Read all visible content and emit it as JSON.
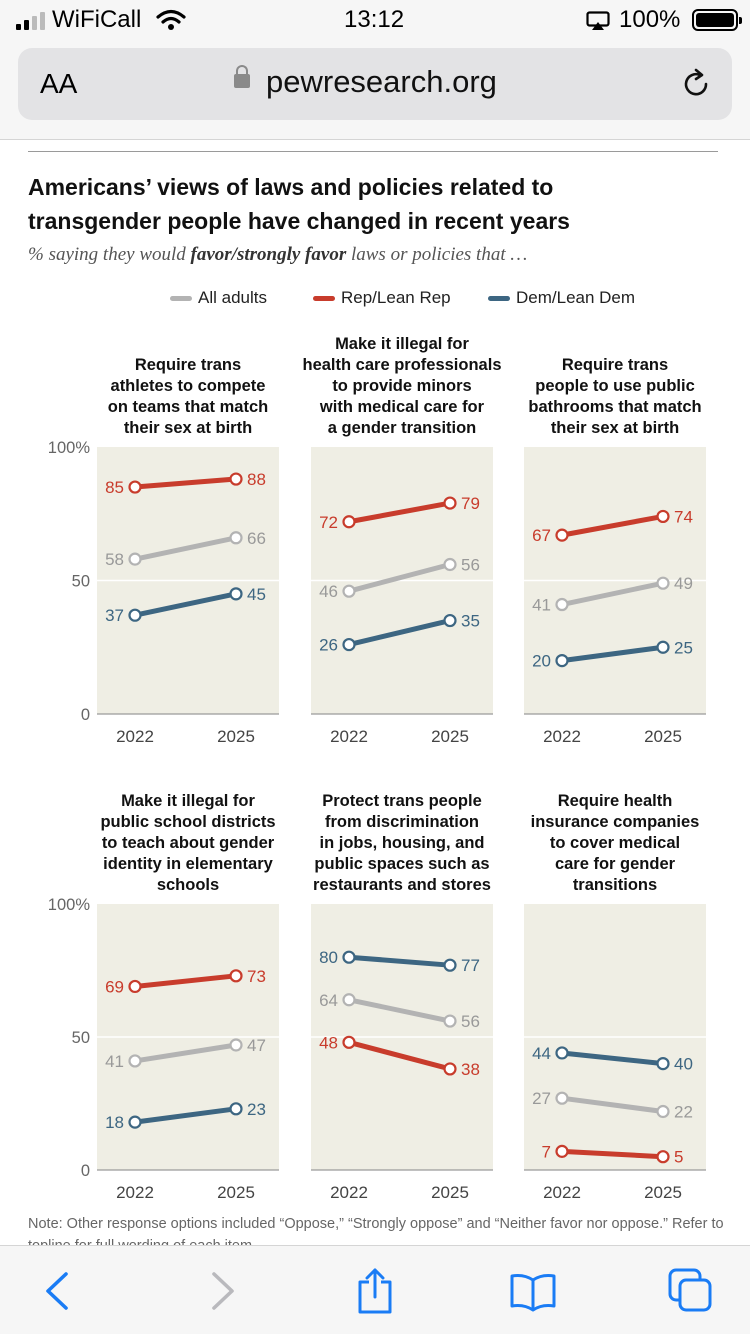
{
  "status_bar": {
    "carrier": "WiFiCall",
    "time": "13:12",
    "battery": "100%"
  },
  "browser": {
    "text_size_label": "AA",
    "url": "pewresearch.org"
  },
  "article": {
    "title_line1": "Americans’ views of laws and policies related to",
    "title_line2": "transgender people have changed in recent years",
    "subtitle_pre": "% saying they would ",
    "subtitle_emph": "favor/strongly favor",
    "subtitle_post": " laws or policies that …",
    "note": "Note: Other response options included “Oppose,” “Strongly oppose” and “Neither favor nor oppose.” Refer to topline for full wording of each item."
  },
  "colors": {
    "all": "#b3b3b3",
    "rep": "#c83c2c",
    "dem": "#3d6682",
    "panel_bg": "#efeee4"
  },
  "chart_data": {
    "type": "line",
    "x": [
      "2022",
      "2025"
    ],
    "ylim": [
      0,
      100
    ],
    "yticks": [
      "100%",
      "50",
      "0"
    ],
    "legend": [
      "All adults",
      "Rep/Lean Rep",
      "Dem/Lean Dem"
    ],
    "legend_position": "top",
    "panels": [
      {
        "title": [
          "Require trans",
          "athletes to compete",
          "on teams that match",
          "their sex at birth"
        ],
        "series": [
          {
            "name": "Rep/Lean Rep",
            "values": [
              85,
              88
            ]
          },
          {
            "name": "All adults",
            "values": [
              58,
              66
            ]
          },
          {
            "name": "Dem/Lean Dem",
            "values": [
              37,
              45
            ]
          }
        ]
      },
      {
        "title": [
          "Make it illegal for",
          "health care professionals",
          "to provide minors",
          "with medical care for",
          "a gender transition"
        ],
        "series": [
          {
            "name": "Rep/Lean Rep",
            "values": [
              72,
              79
            ]
          },
          {
            "name": "All adults",
            "values": [
              46,
              56
            ]
          },
          {
            "name": "Dem/Lean Dem",
            "values": [
              26,
              35
            ]
          }
        ]
      },
      {
        "title": [
          "Require trans",
          "people to use public",
          "bathrooms that match",
          "their sex at birth"
        ],
        "series": [
          {
            "name": "Rep/Lean Rep",
            "values": [
              67,
              74
            ]
          },
          {
            "name": "All adults",
            "values": [
              41,
              49
            ]
          },
          {
            "name": "Dem/Lean Dem",
            "values": [
              20,
              25
            ]
          }
        ]
      },
      {
        "title": [
          "Make it illegal for",
          "public school districts",
          "to teach about gender",
          "identity in elementary",
          "schools"
        ],
        "series": [
          {
            "name": "Rep/Lean Rep",
            "values": [
              69,
              73
            ]
          },
          {
            "name": "All adults",
            "values": [
              41,
              47
            ]
          },
          {
            "name": "Dem/Lean Dem",
            "values": [
              18,
              23
            ]
          }
        ]
      },
      {
        "title": [
          "Protect trans people",
          "from discrimination",
          "in jobs, housing, and",
          "public spaces such as",
          "restaurants and stores"
        ],
        "series": [
          {
            "name": "Dem/Lean Dem",
            "values": [
              80,
              77
            ]
          },
          {
            "name": "All adults",
            "values": [
              64,
              56
            ]
          },
          {
            "name": "Rep/Lean Rep",
            "values": [
              48,
              38
            ]
          }
        ]
      },
      {
        "title": [
          "Require health",
          "insurance companies",
          "to cover medical",
          "care for gender",
          "transitions"
        ],
        "series": [
          {
            "name": "Dem/Lean Dem",
            "values": [
              44,
              40
            ]
          },
          {
            "name": "All adults",
            "values": [
              27,
              22
            ]
          },
          {
            "name": "Rep/Lean Rep",
            "values": [
              7,
              5
            ]
          }
        ]
      }
    ]
  }
}
